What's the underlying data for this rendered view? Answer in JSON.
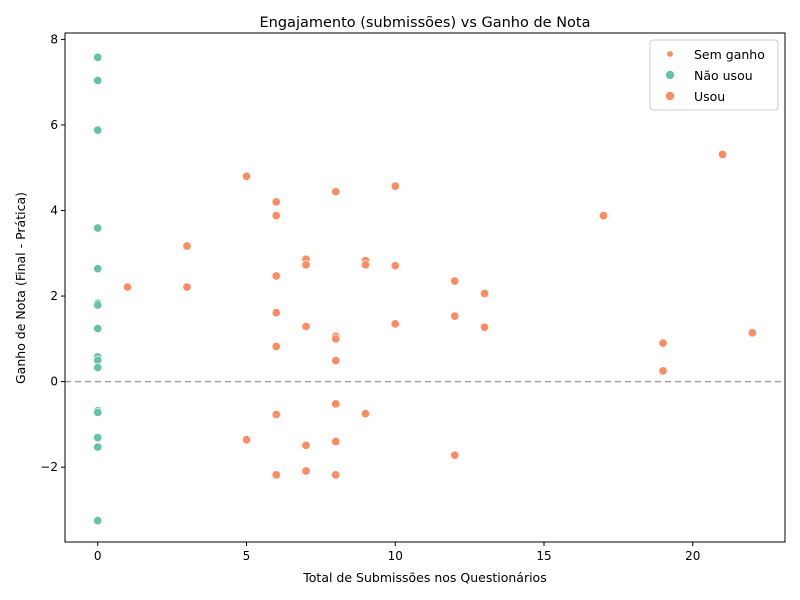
{
  "chart_data": {
    "type": "scatter",
    "title": "Engajamento (submissões) vs Ganho de Nota",
    "xlabel": "Total de Submissões nos Questionários",
    "ylabel": "Ganho de Nota (Final - Prática)",
    "xlim": [
      -1.1,
      23.1
    ],
    "ylim": [
      -3.75,
      8.15
    ],
    "xticks": [
      0,
      5,
      10,
      15,
      20
    ],
    "yticks": [
      -2,
      0,
      2,
      4,
      6,
      8
    ],
    "grid": false,
    "legend_position": "top-right",
    "reference_line": {
      "y": 0,
      "style": "dashed",
      "color": "#a0a0a6"
    },
    "legend": [
      {
        "label": "Sem ganho",
        "color": "#fc8d62",
        "marker": "small"
      },
      {
        "label": "Não usou",
        "color": "#66c2a5",
        "marker": "large"
      },
      {
        "label": "Usou",
        "color": "#fc8d62",
        "marker": "large"
      }
    ],
    "series": [
      {
        "name": "Não usou",
        "color": "#66c2a5",
        "points": [
          [
            0,
            7.58
          ],
          [
            0,
            7.04
          ],
          [
            0,
            5.88
          ],
          [
            0,
            3.59
          ],
          [
            0,
            2.64
          ],
          [
            0,
            1.83
          ],
          [
            0,
            1.79
          ],
          [
            0,
            1.24
          ],
          [
            0,
            0.58
          ],
          [
            0,
            0.5
          ],
          [
            0,
            0.33
          ],
          [
            0,
            -0.68
          ],
          [
            0,
            -0.72
          ],
          [
            0,
            -1.31
          ],
          [
            0,
            -1.53
          ],
          [
            0,
            -3.25
          ]
        ]
      },
      {
        "name": "Usou",
        "color": "#fc8d62",
        "points": [
          [
            1,
            2.21
          ],
          [
            3,
            3.17
          ],
          [
            3,
            2.21
          ],
          [
            5,
            4.8
          ],
          [
            5,
            -1.36
          ],
          [
            6,
            4.2
          ],
          [
            6,
            3.88
          ],
          [
            6,
            2.47
          ],
          [
            6,
            1.61
          ],
          [
            6,
            0.82
          ],
          [
            6,
            -0.77
          ],
          [
            6,
            -2.18
          ],
          [
            7,
            2.86
          ],
          [
            7,
            2.73
          ],
          [
            7,
            1.29
          ],
          [
            7,
            -1.49
          ],
          [
            7,
            -2.09
          ],
          [
            8,
            4.44
          ],
          [
            8,
            1.06
          ],
          [
            8,
            1.0
          ],
          [
            8,
            0.49
          ],
          [
            8,
            -0.52
          ],
          [
            8,
            -1.4
          ],
          [
            8,
            -2.18
          ],
          [
            9,
            2.83
          ],
          [
            9,
            2.73
          ],
          [
            9,
            -0.75
          ],
          [
            10,
            4.57
          ],
          [
            10,
            2.71
          ],
          [
            10,
            1.35
          ],
          [
            12,
            2.35
          ],
          [
            12,
            1.53
          ],
          [
            12,
            -1.72
          ],
          [
            13,
            2.06
          ],
          [
            13,
            1.27
          ],
          [
            17,
            3.88
          ],
          [
            19,
            0.9
          ],
          [
            19,
            0.25
          ],
          [
            21,
            5.31
          ],
          [
            22,
            1.14
          ]
        ]
      }
    ]
  }
}
